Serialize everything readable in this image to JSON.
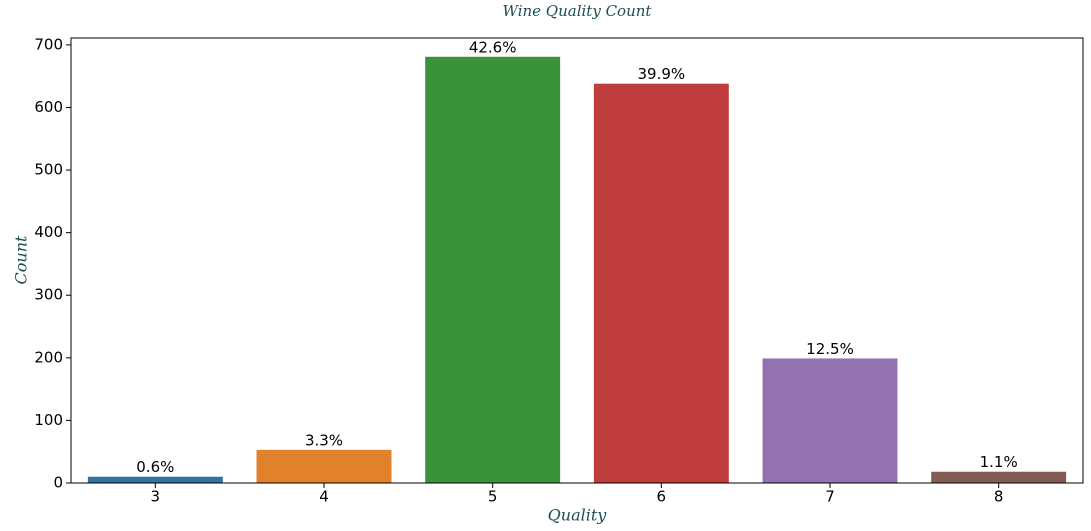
{
  "chart_data": {
    "type": "bar",
    "title": "Wine Quality Count",
    "x_label": "Quality",
    "y_label": "Count",
    "categories": [
      "3",
      "4",
      "5",
      "6",
      "7",
      "8"
    ],
    "values": [
      10,
      53,
      681,
      638,
      199,
      18
    ],
    "annotations": [
      "0.6%",
      "3.3%",
      "42.6%",
      "39.9%",
      "12.5%",
      "1.1%"
    ],
    "colors": [
      "#3274a1",
      "#e1812c",
      "#3a923a",
      "#c03d3e",
      "#9372b2",
      "#845b53"
    ],
    "ylim": [
      0,
      711
    ],
    "yticks": [
      0,
      100,
      200,
      300,
      400,
      500,
      600,
      700
    ],
    "grid": false
  }
}
